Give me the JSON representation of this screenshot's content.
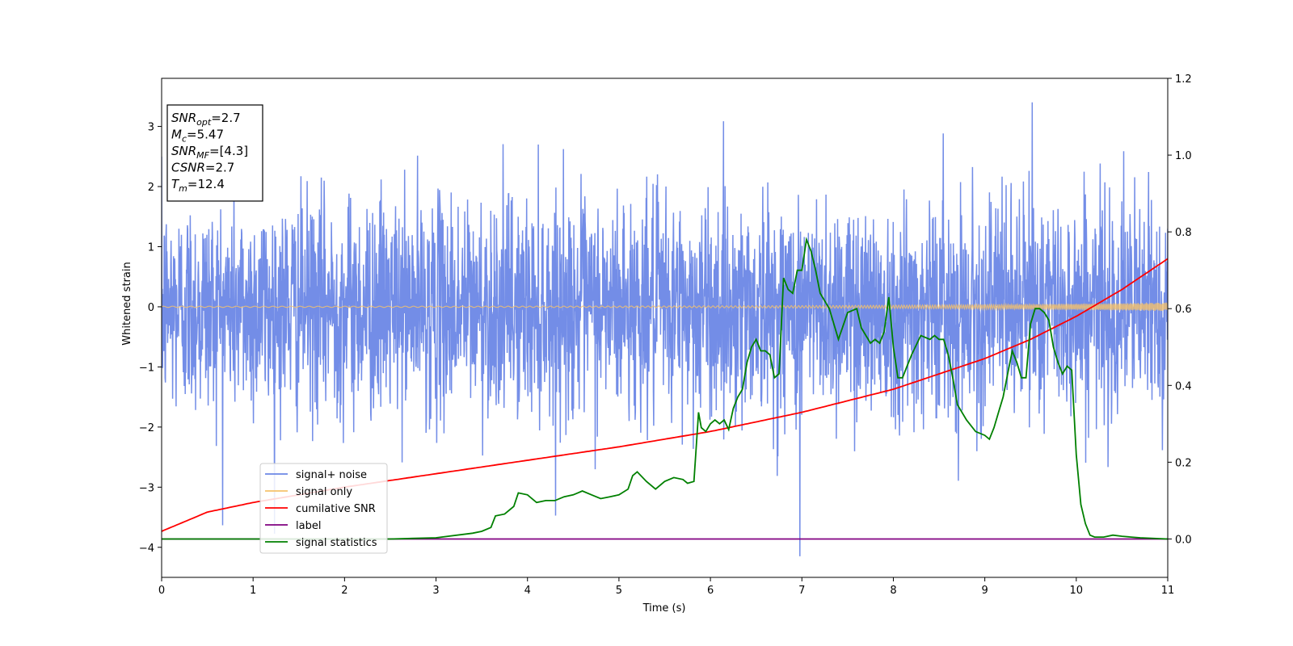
{
  "chart_data": {
    "type": "line",
    "xlabel": "Time (s)",
    "ylabel_left": "Whitened strain",
    "xlim": [
      0,
      11
    ],
    "ylim_left": [
      -4.5,
      3.8
    ],
    "ylim_right": [
      -0.1,
      1.2
    ],
    "x_ticks": [
      0,
      1,
      2,
      3,
      4,
      5,
      6,
      7,
      8,
      9,
      10,
      11
    ],
    "y_ticks_left": [
      -4,
      -3,
      -2,
      -1,
      0,
      1,
      2,
      3
    ],
    "y_ticks_right": [
      0.0,
      0.2,
      0.4,
      0.6,
      0.8,
      1.0,
      1.2
    ],
    "grid": false,
    "legend_position": "lower-left",
    "annotation": {
      "lines": [
        {
          "var": "SNR",
          "sub": "opt",
          "value": "=2.7"
        },
        {
          "var": "M",
          "sub": "c",
          "value": "=5.47"
        },
        {
          "var": "SNR",
          "sub": "MF",
          "value": "=[4.3]"
        },
        {
          "var": "CSNR",
          "sub": "",
          "value": "=2.7"
        },
        {
          "var": "T",
          "sub": "m",
          "value": "=12.4"
        }
      ]
    },
    "series": [
      {
        "name": "signal+ noise",
        "axis": "left",
        "color": "#6b87e6",
        "kind": "noise",
        "stats": {
          "sigma": 0.9,
          "min": -4.15,
          "max": 3.4
        }
      },
      {
        "name": "signal only",
        "axis": "left",
        "color": "#f5c26b",
        "kind": "chirp",
        "amplitude_start": 0.01,
        "amplitude_end": 0.07
      },
      {
        "name": "cumilative SNR",
        "axis": "right",
        "color": "#ff0000",
        "x": [
          0,
          0.5,
          1,
          2,
          3,
          4,
          5,
          6,
          7,
          8,
          9,
          9.5,
          10,
          10.5,
          11
        ],
        "y": [
          0.02,
          0.07,
          0.095,
          0.135,
          0.17,
          0.205,
          0.24,
          0.28,
          0.33,
          0.39,
          0.47,
          0.52,
          0.58,
          0.65,
          0.73
        ]
      },
      {
        "name": "label",
        "axis": "right",
        "color": "#800080",
        "x": [
          0,
          11
        ],
        "y": [
          0,
          0
        ]
      },
      {
        "name": "signal statistics",
        "axis": "right",
        "color": "#008000",
        "x": [
          0,
          2.5,
          3.0,
          3.4,
          3.5,
          3.6,
          3.65,
          3.75,
          3.85,
          3.9,
          4.0,
          4.1,
          4.2,
          4.3,
          4.4,
          4.5,
          4.55,
          4.6,
          4.7,
          4.8,
          4.9,
          5.0,
          5.1,
          5.15,
          5.2,
          5.3,
          5.4,
          5.5,
          5.6,
          5.7,
          5.75,
          5.82,
          5.87,
          5.9,
          5.95,
          6.0,
          6.05,
          6.1,
          6.15,
          6.2,
          6.25,
          6.3,
          6.35,
          6.4,
          6.45,
          6.5,
          6.55,
          6.6,
          6.65,
          6.7,
          6.75,
          6.8,
          6.85,
          6.9,
          6.95,
          7.0,
          7.05,
          7.1,
          7.15,
          7.2,
          7.3,
          7.4,
          7.5,
          7.6,
          7.65,
          7.7,
          7.75,
          7.8,
          7.85,
          7.9,
          7.95,
          8.0,
          8.05,
          8.1,
          8.15,
          8.2,
          8.3,
          8.4,
          8.45,
          8.5,
          8.55,
          8.6,
          8.65,
          8.7,
          8.8,
          8.9,
          9.0,
          9.05,
          9.1,
          9.15,
          9.2,
          9.25,
          9.3,
          9.35,
          9.4,
          9.45,
          9.5,
          9.55,
          9.6,
          9.65,
          9.7,
          9.75,
          9.8,
          9.85,
          9.9,
          9.95,
          10.0,
          10.05,
          10.1,
          10.15,
          10.2,
          10.3,
          10.4,
          10.5,
          10.6,
          10.7,
          11.0
        ],
        "y": [
          0.0,
          0.0,
          0.003,
          0.015,
          0.02,
          0.03,
          0.06,
          0.065,
          0.085,
          0.12,
          0.115,
          0.095,
          0.1,
          0.1,
          0.11,
          0.115,
          0.12,
          0.125,
          0.115,
          0.105,
          0.11,
          0.115,
          0.13,
          0.165,
          0.175,
          0.15,
          0.13,
          0.15,
          0.16,
          0.155,
          0.145,
          0.15,
          0.33,
          0.29,
          0.28,
          0.3,
          0.31,
          0.3,
          0.31,
          0.285,
          0.34,
          0.37,
          0.39,
          0.46,
          0.5,
          0.52,
          0.49,
          0.49,
          0.48,
          0.42,
          0.43,
          0.68,
          0.65,
          0.64,
          0.7,
          0.7,
          0.78,
          0.75,
          0.7,
          0.64,
          0.6,
          0.52,
          0.59,
          0.6,
          0.55,
          0.53,
          0.51,
          0.52,
          0.51,
          0.54,
          0.63,
          0.5,
          0.42,
          0.42,
          0.45,
          0.48,
          0.53,
          0.52,
          0.53,
          0.52,
          0.52,
          0.48,
          0.42,
          0.35,
          0.31,
          0.28,
          0.27,
          0.26,
          0.29,
          0.33,
          0.37,
          0.43,
          0.49,
          0.46,
          0.42,
          0.42,
          0.56,
          0.6,
          0.6,
          0.59,
          0.57,
          0.5,
          0.46,
          0.43,
          0.45,
          0.44,
          0.22,
          0.09,
          0.04,
          0.01,
          0.005,
          0.005,
          0.01,
          0.007,
          0.005,
          0.003,
          0.0
        ]
      }
    ]
  }
}
